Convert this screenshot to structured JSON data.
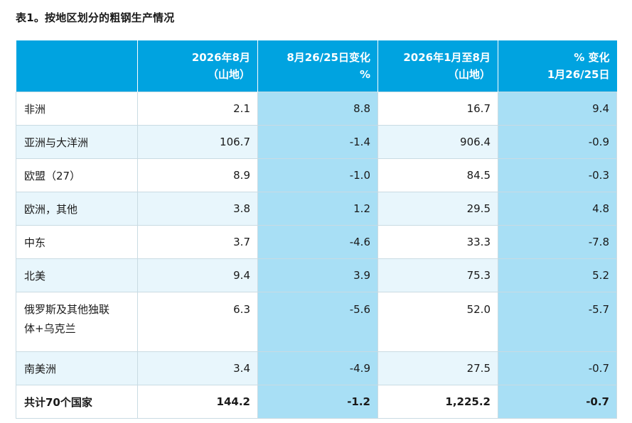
{
  "title": "表1。按地区划分的粗钢生产情况",
  "header": {
    "col0": "",
    "col1_line1": "2026年8月",
    "col1_line2": "（山地）",
    "col2_line1": "8月26/25日变化",
    "col2_line2": "%",
    "col3_line1": "2026年1月至8月",
    "col3_line2": "（山地）",
    "col4_line1": "% 变化",
    "col4_line2": "1月26/25日"
  },
  "rows": [
    {
      "region": "非洲",
      "aug": "2.1",
      "aug_change": "8.8",
      "ytd": "16.7",
      "ytd_change": "9.4"
    },
    {
      "region": "亚洲与大洋洲",
      "aug": "106.7",
      "aug_change": "-1.4",
      "ytd": "906.4",
      "ytd_change": "-0.9"
    },
    {
      "region": "欧盟（27）",
      "aug": "8.9",
      "aug_change": "-1.0",
      "ytd": "84.5",
      "ytd_change": "-0.3"
    },
    {
      "region": "欧洲，其他",
      "aug": "3.8",
      "aug_change": "1.2",
      "ytd": "29.5",
      "ytd_change": "4.8"
    },
    {
      "region": "中东",
      "aug": "3.7",
      "aug_change": "-4.6",
      "ytd": "33.3",
      "ytd_change": "-7.8"
    },
    {
      "region": "北美",
      "aug": "9.4",
      "aug_change": "3.9",
      "ytd": "75.3",
      "ytd_change": "5.2"
    },
    {
      "region_line1": "俄罗斯及其他独联",
      "region_line2": "体+乌克兰",
      "aug": "6.3",
      "aug_change": "-5.6",
      "ytd": "52.0",
      "ytd_change": "-5.7"
    },
    {
      "region": "南美洲",
      "aug": "3.4",
      "aug_change": "-4.9",
      "ytd": "27.5",
      "ytd_change": "-0.7"
    }
  ],
  "total": {
    "region": "共计70个国家",
    "aug": "144.2",
    "aug_change": "-1.2",
    "ytd": "1,225.2",
    "ytd_change": "-0.7"
  }
}
